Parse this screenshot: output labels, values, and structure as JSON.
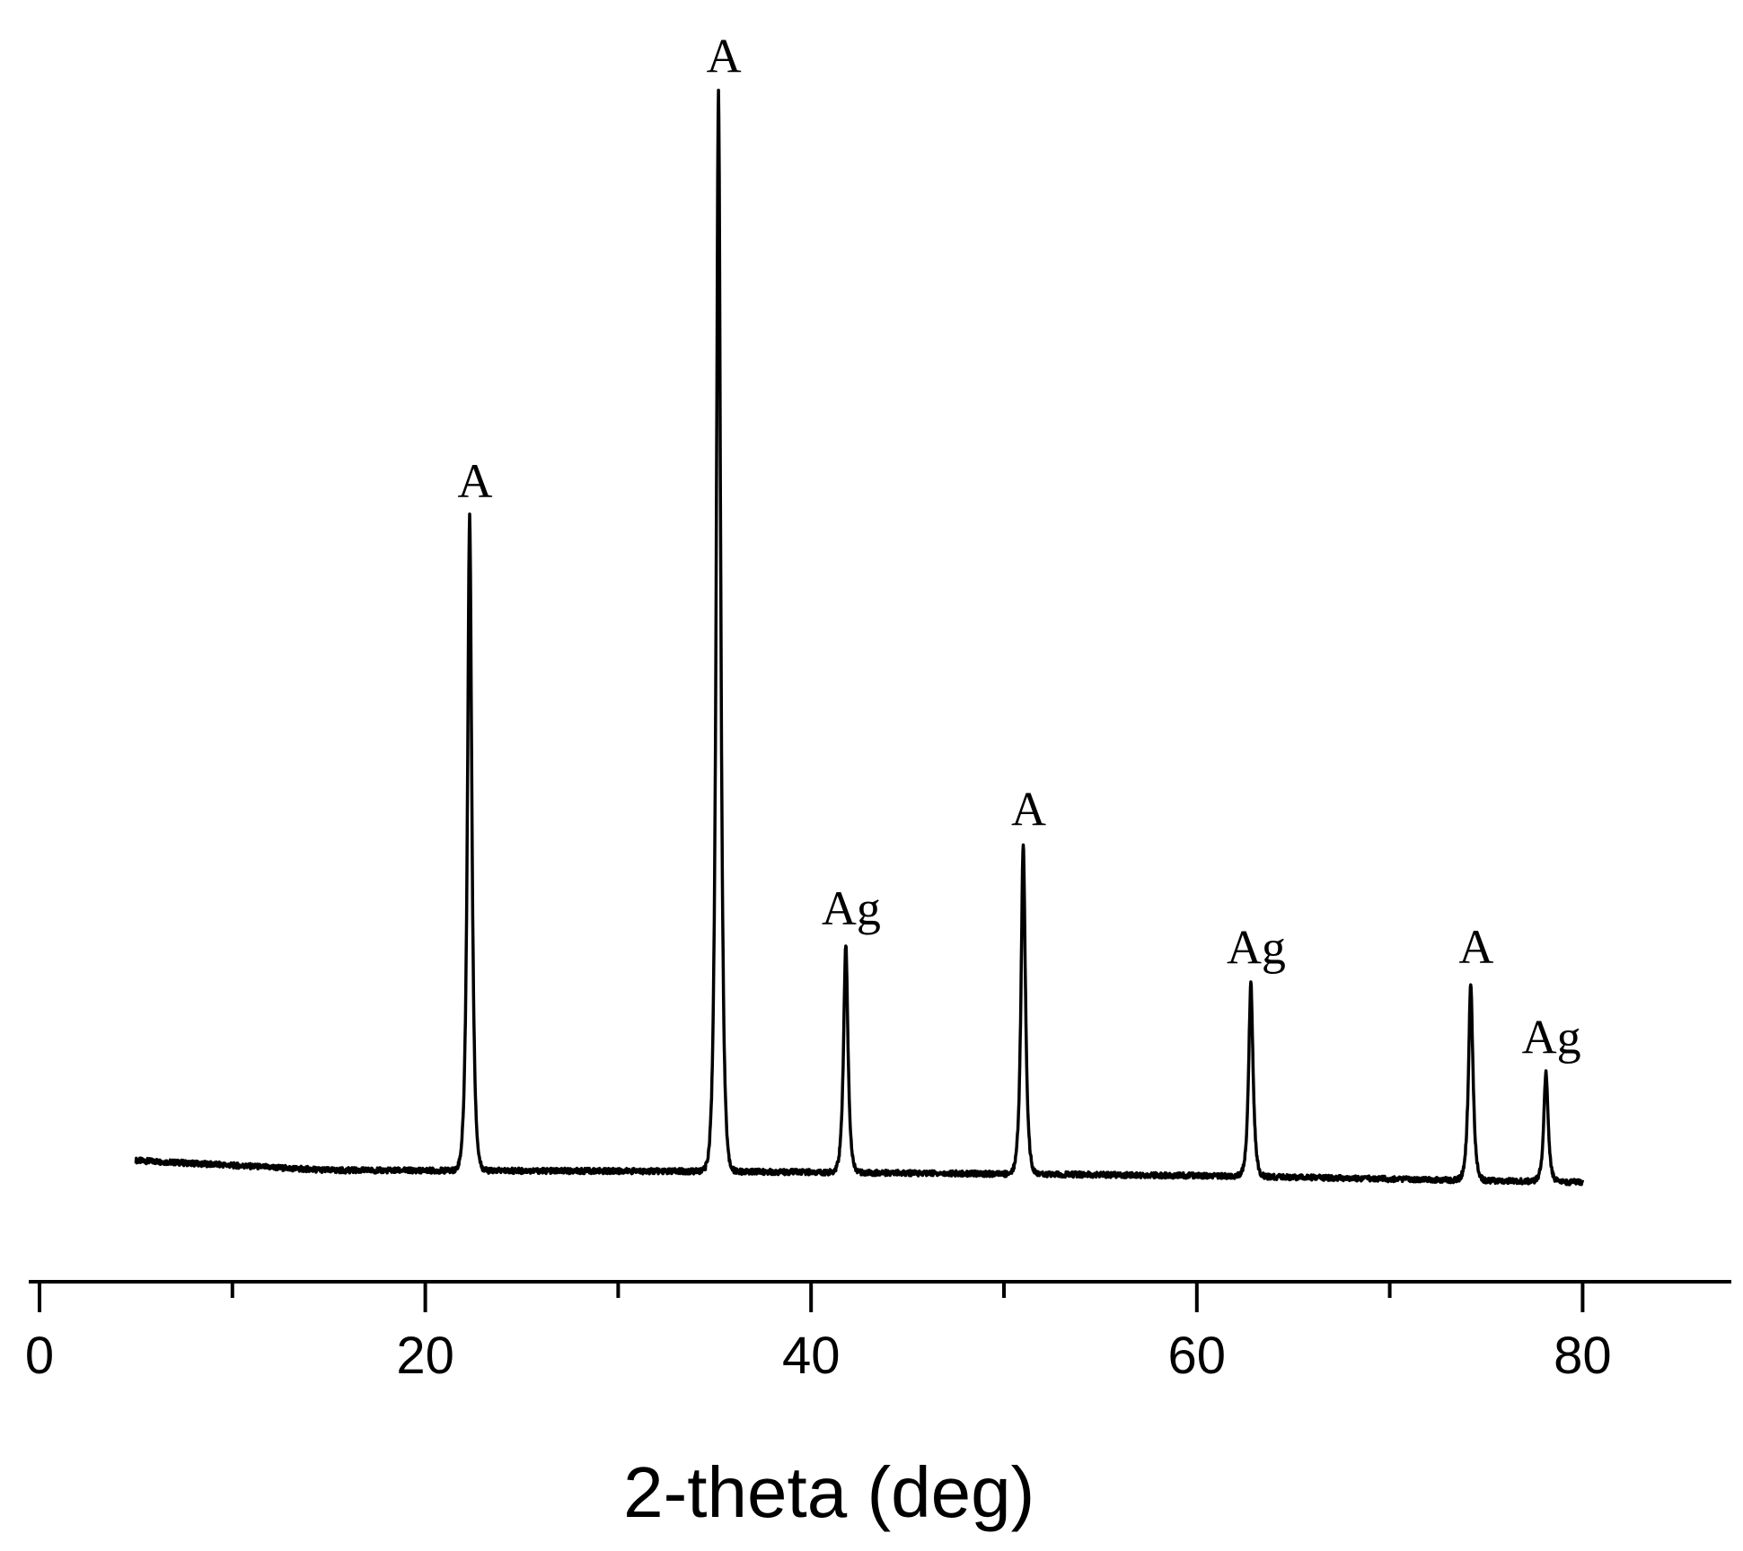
{
  "chart_data": {
    "type": "line",
    "title": "",
    "xlabel": "2-theta (deg)",
    "ylabel": "",
    "xlim": [
      0,
      88
    ],
    "ylim": [
      0,
      1000
    ],
    "x_ticks": [
      0,
      20,
      40,
      60,
      80
    ],
    "x_minor_ticks": [
      10,
      30,
      50,
      70
    ],
    "x_tick_labels": [
      "0",
      "20",
      "40",
      "60",
      "80"
    ],
    "y_axis_visible": false,
    "grid": false,
    "legend": "none",
    "line_color": "#000000",
    "series": [
      {
        "x_range": [
          5,
          80
        ],
        "baseline": [
          {
            "x": 5,
            "y": 10
          },
          {
            "x": 15,
            "y": 1
          },
          {
            "x": 35,
            "y": 0
          },
          {
            "x": 60,
            "y": -4
          },
          {
            "x": 80,
            "y": -10
          }
        ],
        "peaks": [
          {
            "x": 22.3,
            "height": 602,
            "label": "A"
          },
          {
            "x": 35.2,
            "height": 994,
            "label": "A"
          },
          {
            "x": 41.8,
            "height": 210,
            "label": "Ag"
          },
          {
            "x": 51.0,
            "height": 303,
            "label": "A"
          },
          {
            "x": 62.8,
            "height": 178,
            "label": "Ag"
          },
          {
            "x": 74.2,
            "height": 182,
            "label": "A"
          },
          {
            "x": 78.1,
            "height": 100,
            "label": "Ag"
          }
        ]
      }
    ]
  }
}
